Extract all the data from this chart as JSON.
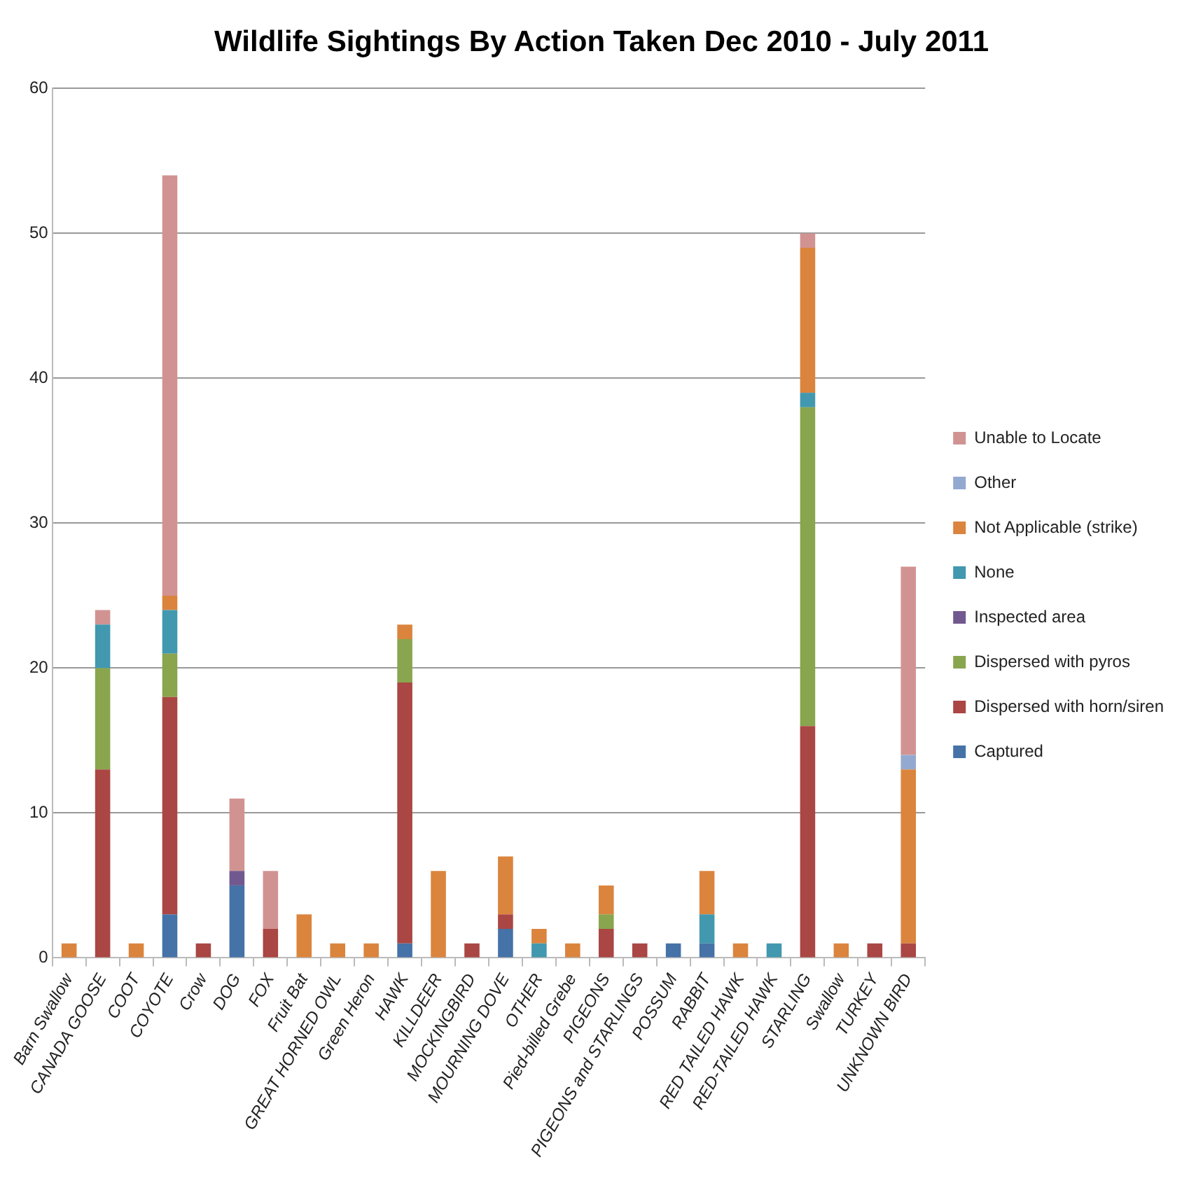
{
  "chart_data": {
    "type": "bar",
    "title": "Wildlife Sightings By Action Taken Dec 2010 - July 2011",
    "stacked": true,
    "legend": "right",
    "grid": "y",
    "categories": [
      "Barn Swallow",
      "CANADA GOOSE",
      "COOT",
      "COYOTE",
      "Crow",
      "DOG",
      "FOX",
      "Fruit Bat",
      "GREAT HORNED OWL",
      "Green Heron",
      "HAWK",
      "KILLDEER",
      "MOCKINGBIRD",
      "MOURNING DOVE",
      "OTHER",
      "Pied-billed Grebe",
      "PIGEONS",
      "PIGEONS and STARLINGS",
      "POSSUM",
      "RABBIT",
      "RED TAILED HAWK",
      "RED-TAILED HAWK",
      "STARLING",
      "Swallow",
      "TURKEY",
      "UNKNOWN BIRD"
    ],
    "ylim": [
      0,
      60
    ],
    "yticks": [
      0,
      10,
      20,
      30,
      40,
      50,
      60
    ],
    "series": [
      {
        "name": "Captured",
        "color": "#4572a7",
        "values": [
          null,
          null,
          null,
          3,
          null,
          5,
          null,
          null,
          null,
          null,
          1,
          null,
          null,
          2,
          null,
          null,
          null,
          null,
          1,
          1,
          null,
          null,
          null,
          null,
          null,
          null
        ]
      },
      {
        "name": "Dispersed with horn/siren",
        "color": "#aa4643",
        "values": [
          null,
          13,
          null,
          15,
          1,
          null,
          2,
          null,
          null,
          null,
          18,
          null,
          1,
          1,
          null,
          null,
          2,
          1,
          null,
          null,
          null,
          null,
          16,
          null,
          1,
          1
        ]
      },
      {
        "name": "Dispersed with pyros",
        "color": "#89a54e",
        "values": [
          null,
          7,
          null,
          3,
          null,
          null,
          null,
          null,
          null,
          null,
          3,
          null,
          null,
          null,
          null,
          null,
          1,
          null,
          null,
          null,
          null,
          null,
          22,
          null,
          null,
          null
        ]
      },
      {
        "name": "Inspected area",
        "color": "#71588f",
        "values": [
          null,
          null,
          null,
          null,
          null,
          1,
          null,
          null,
          null,
          null,
          null,
          null,
          null,
          null,
          null,
          null,
          null,
          null,
          null,
          null,
          null,
          null,
          null,
          null,
          null,
          null
        ]
      },
      {
        "name": "None",
        "color": "#4198af",
        "values": [
          null,
          3,
          null,
          3,
          null,
          null,
          null,
          null,
          null,
          null,
          null,
          null,
          null,
          null,
          1,
          null,
          null,
          null,
          null,
          2,
          null,
          1,
          1,
          null,
          null,
          null
        ]
      },
      {
        "name": "Not Applicable (strike)",
        "color": "#db843d",
        "values": [
          1,
          null,
          1,
          1,
          null,
          null,
          null,
          3,
          1,
          1,
          1,
          6,
          null,
          4,
          1,
          1,
          2,
          null,
          null,
          3,
          1,
          null,
          10,
          1,
          null,
          12
        ]
      },
      {
        "name": "Other",
        "color": "#93a9cf",
        "values": [
          null,
          null,
          null,
          null,
          null,
          null,
          null,
          null,
          null,
          null,
          null,
          null,
          null,
          null,
          null,
          null,
          null,
          null,
          null,
          null,
          null,
          null,
          null,
          null,
          null,
          1
        ]
      },
      {
        "name": "Unable to Locate",
        "color": "#d19392",
        "values": [
          null,
          1,
          null,
          29,
          null,
          5,
          4,
          null,
          null,
          null,
          null,
          null,
          null,
          null,
          null,
          null,
          null,
          null,
          null,
          null,
          null,
          null,
          1,
          null,
          null,
          13
        ]
      }
    ]
  }
}
